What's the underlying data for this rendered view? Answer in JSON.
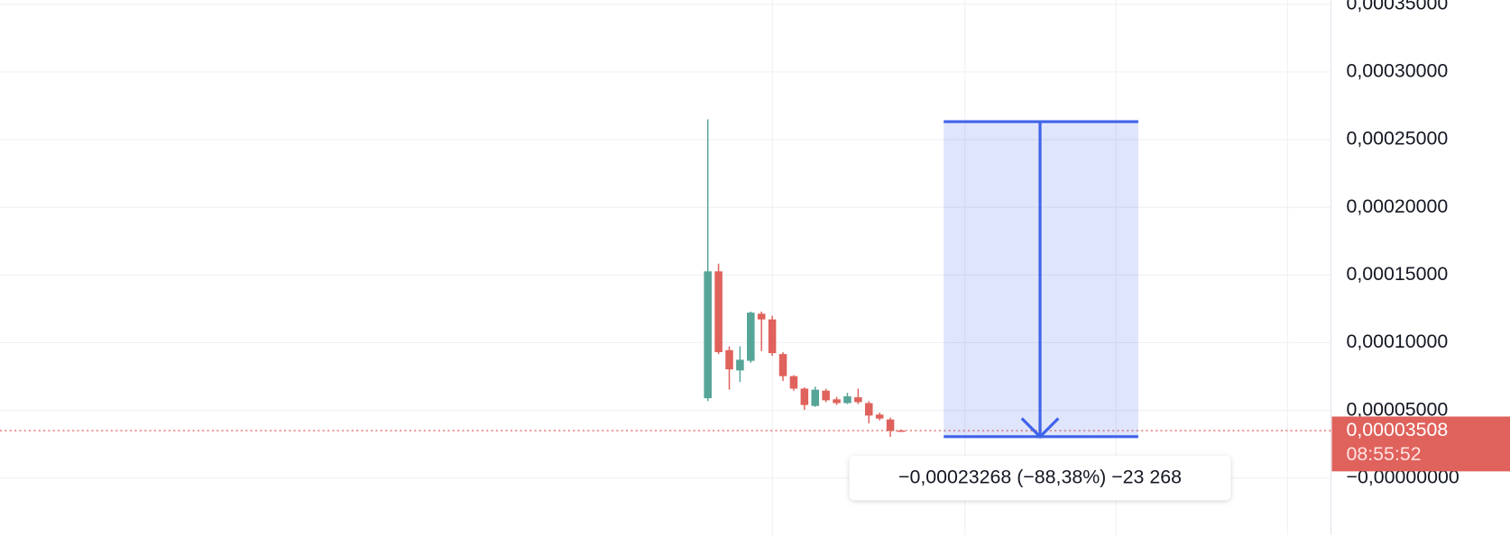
{
  "chart_data": {
    "type": "candlestick",
    "categories": [
      null,
      null,
      null,
      null,
      null,
      null,
      null,
      null,
      null,
      null,
      null,
      null,
      null,
      null,
      null,
      null,
      null,
      null,
      null
    ],
    "open": [
      5.9e-05,
      0.0001527,
      9.45e-05,
      7.95e-05,
      8.66e-05,
      0.0001214,
      0.0001172,
      9.16e-05,
      7.53e-05,
      6.61e-05,
      5.33e-05,
      6.46e-05,
      5.82e-05,
      5.54e-05,
      5.97e-05,
      5.54e-05,
      4.69e-05,
      4.33e-05,
      3.52e-05
    ],
    "high": [
      0.000265,
      0.0001584,
      9.73e-05,
      9.73e-05,
      0.000123,
      0.000123,
      0.00012,
      9.3e-05,
      7.6e-05,
      6.7e-05,
      6.75e-05,
      6.6e-05,
      6e-05,
      6.3e-05,
      6.61e-05,
      5.68e-05,
      4.83e-05,
      4.47e-05,
      3.6e-05
    ],
    "low": [
      5.68e-05,
      9.16e-05,
      6.53e-05,
      7.1e-05,
      8.52e-05,
      9.38e-05,
      9.02e-05,
      7.17e-05,
      6.46e-05,
      5.04e-05,
      5.26e-05,
      5.61e-05,
      5.4e-05,
      5.47e-05,
      5.47e-05,
      4.05e-05,
      4.26e-05,
      3.05e-05,
      3.45e-05
    ],
    "close": [
      0.0001527,
      9.3e-05,
      8.03e-05,
      8.74e-05,
      0.0001222,
      0.0001172,
      9.23e-05,
      7.53e-05,
      6.61e-05,
      5.4e-05,
      6.53e-05,
      5.75e-05,
      5.54e-05,
      6.04e-05,
      5.61e-05,
      4.62e-05,
      4.4e-05,
      3.48e-05,
      3.508e-05
    ],
    "up_color": "#56a597",
    "down_color": "#e0625c",
    "ylim": [
      -4.19e-05,
      0.000353
    ],
    "yticks": [
      {
        "value": 0.00035,
        "label": "0,00035000"
      },
      {
        "value": 0.0003,
        "label": "0,00030000"
      },
      {
        "value": 0.00025,
        "label": "0,00025000"
      },
      {
        "value": 0.0002,
        "label": "0,00020000"
      },
      {
        "value": 0.00015,
        "label": "0,00015000"
      },
      {
        "value": 0.0001,
        "label": "0,00010000"
      },
      {
        "value": 5e-05,
        "label": "0,00005000"
      },
      {
        "value": 0,
        "label": "−0,00000000"
      }
    ],
    "grid": true,
    "last_price": {
      "value": 3.508e-05,
      "label": "0,00003508",
      "time": "08:55:52"
    },
    "measure": {
      "from": 0.00026327,
      "to": 3.059e-05,
      "label": "−0,00023268 (−88,38%) −23 268",
      "color": "#3f63e8"
    }
  }
}
